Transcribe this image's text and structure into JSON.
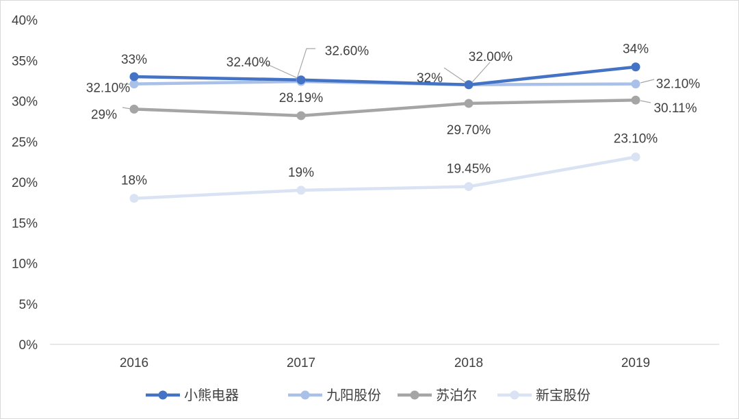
{
  "chart_data": {
    "type": "line",
    "title": "",
    "xlabel": "",
    "ylabel": "",
    "categories": [
      "2016",
      "2017",
      "2018",
      "2019"
    ],
    "ylim": [
      0,
      40
    ],
    "y_ticks": [
      "0%",
      "5%",
      "10%",
      "15%",
      "20%",
      "25%",
      "30%",
      "35%",
      "40%"
    ],
    "grid": false,
    "legend_position": "bottom",
    "series": [
      {
        "name": "小熊电器",
        "color": "#4472C4",
        "values": [
          33,
          32.6,
          32,
          34.2
        ],
        "labels": [
          "33%",
          "32.60%",
          "32%",
          "34%"
        ]
      },
      {
        "name": "九阳股份",
        "color": "#A9C1E8",
        "values": [
          32.1,
          32.4,
          32.0,
          32.1
        ],
        "labels": [
          "32.10%",
          "32.40%",
          "32.00%",
          "32.10%"
        ]
      },
      {
        "name": "苏泊尔",
        "color": "#A5A5A5",
        "values": [
          29,
          28.19,
          29.7,
          30.11
        ],
        "labels": [
          "29%",
          "28.19%",
          "29.70%",
          "30.11%"
        ]
      },
      {
        "name": "新宝股份",
        "color": "#DAE3F3",
        "values": [
          18,
          19,
          19.45,
          23.1
        ],
        "labels": [
          "18%",
          "19%",
          "19.45%",
          "23.10%"
        ]
      }
    ]
  }
}
